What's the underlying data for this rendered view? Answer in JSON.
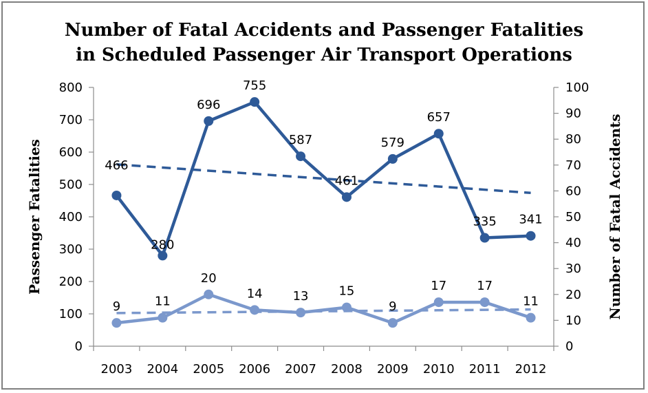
{
  "chart_data": {
    "type": "line",
    "title": "Number of Fatal Accidents and Passenger Fatalities",
    "subtitle": "in Scheduled Passenger Air Transport Operations",
    "categories": [
      "2003",
      "2004",
      "2005",
      "2006",
      "2007",
      "2008",
      "2009",
      "2010",
      "2011",
      "2012"
    ],
    "ylabel": "Passenger Fatalities",
    "y2label": "Number of Fatal Accidents",
    "ylim": [
      0,
      800
    ],
    "y2lim": [
      0,
      100
    ],
    "yticks": [
      "0",
      "100",
      "200",
      "300",
      "400",
      "500",
      "600",
      "700",
      "800"
    ],
    "y2ticks": [
      "0",
      "10",
      "20",
      "30",
      "40",
      "50",
      "60",
      "70",
      "80",
      "90",
      "100"
    ],
    "grid": false,
    "legend": "none",
    "series": [
      {
        "name": "Passenger Fatalities",
        "axis": "left",
        "color": "#2E5A98",
        "values": [
          466,
          280,
          696,
          755,
          587,
          461,
          579,
          657,
          335,
          341
        ],
        "labels": [
          "466",
          "280",
          "696",
          "755",
          "587",
          "461",
          "579",
          "657",
          "335",
          "341"
        ],
        "trendline": {
          "type": "linear",
          "style": "dashed",
          "start": 562,
          "end": 474
        }
      },
      {
        "name": "Number of Fatal Accidents",
        "axis": "right",
        "color": "#7B98CC",
        "values": [
          9,
          11,
          20,
          14,
          13,
          15,
          9,
          17,
          17,
          11
        ],
        "labels": [
          "9",
          "11",
          "20",
          "14",
          "13",
          "15",
          "9",
          "17",
          "17",
          "11"
        ],
        "trendline": {
          "type": "linear",
          "style": "dashed",
          "start": 12.8,
          "end": 14.2
        }
      }
    ]
  }
}
